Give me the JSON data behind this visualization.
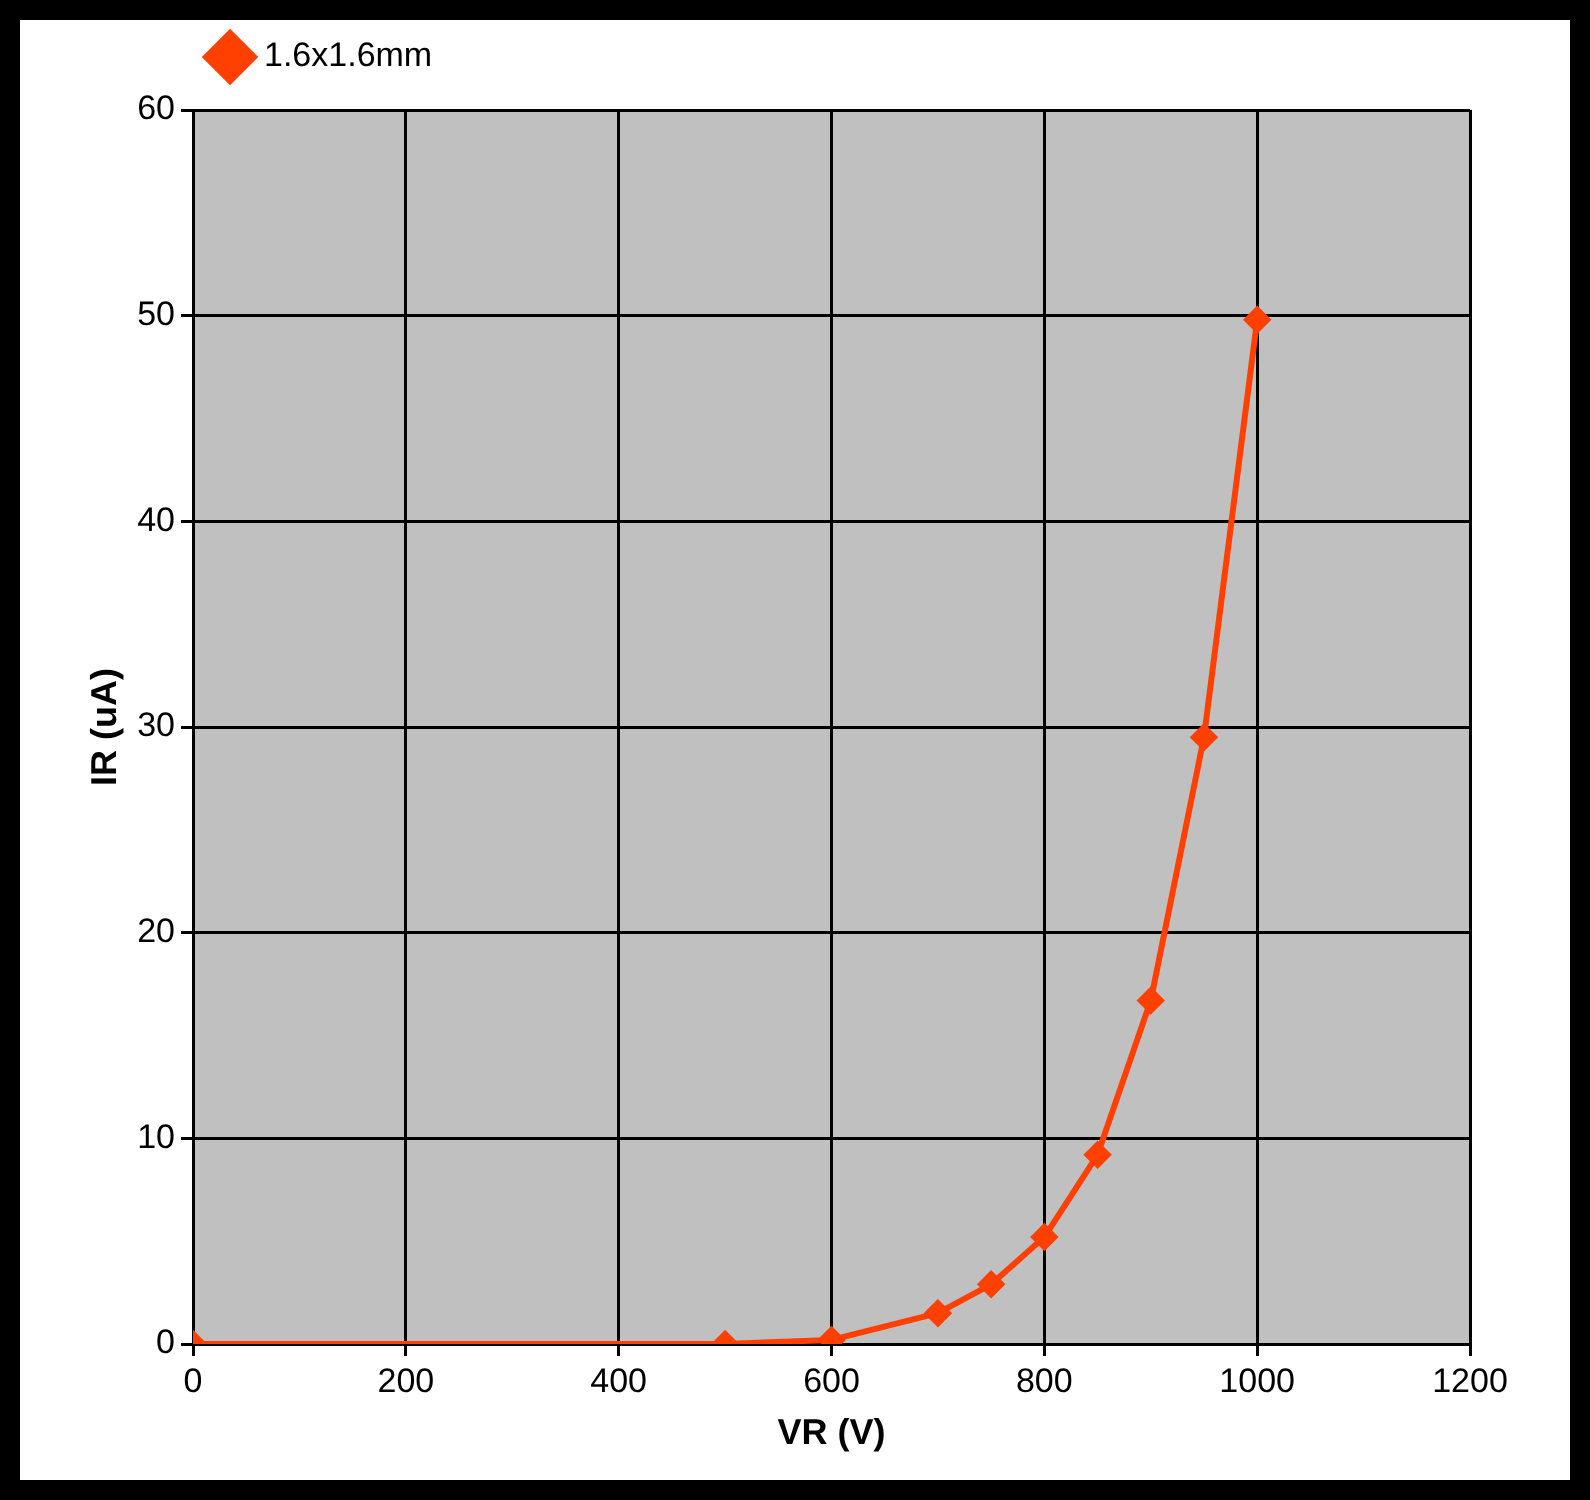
{
  "chart_data": {
    "type": "line",
    "xlabel": "VR (V)",
    "ylabel": "IR (uA)",
    "x": [
      0,
      500,
      600,
      700,
      750,
      800,
      850,
      900,
      950,
      1000
    ],
    "series": [
      {
        "name": "1.6x1.6mm",
        "color": "#ff4000",
        "values": [
          0,
          0,
          0.2,
          1.5,
          2.9,
          5.2,
          9.2,
          16.7,
          29.5,
          49.8
        ]
      }
    ],
    "xlim": [
      0,
      1200
    ],
    "xticks": [
      0,
      200,
      400,
      600,
      800,
      1000,
      1200
    ],
    "ylim": [
      0,
      60
    ],
    "yticks": [
      0,
      10,
      20,
      30,
      40,
      50,
      60
    ],
    "grid": true,
    "legend": "top left",
    "marker": "diamond",
    "line_style": "solid"
  }
}
